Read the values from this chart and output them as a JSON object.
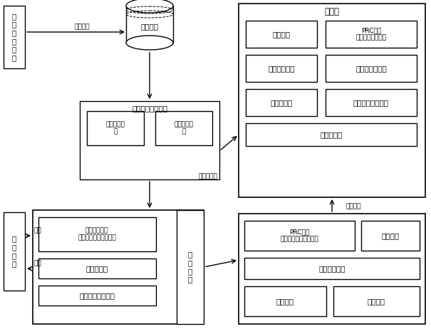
{
  "bg_color": "#ffffff",
  "texts": {
    "create_index": "创\n建\n索\n引\n请\n求",
    "send_vector": "发送向量",
    "msg_queue": "消息队列",
    "index_tool": "索引数据维护工具",
    "realtime_index": "实时索引维\n护",
    "full_index": "全量索引构\n建",
    "master_node": "主节点",
    "elect_module": "选举模块",
    "prc_meta": "PRC接口\n（元数据／心跳）",
    "event_sub": "事件订阅通知",
    "shard_mgmt": "分片分配与管理",
    "meta_mgmt": "元数据管理",
    "vec_cluster": "向量节点集群管理",
    "meta_sync": "元数据同步",
    "get_meta": "获取元数据",
    "heartbeat_report": "心跳汇报",
    "search_req": "检\n索\n请\n求",
    "request": "请求",
    "return_val": "返回",
    "iface_service": "接口服务模块\n（查询／增加／删除）",
    "meta_update": "元数据更新",
    "vec_node_conn": "向量节点连接模块",
    "query_merge": "查\n询\n合\n并",
    "prc_node": "PRC接口\n（查询／增加／删除）",
    "heartbeat_keep": "心跳维护",
    "vec_search": "向量搜索引擎",
    "storage": "存储模块",
    "data_sync": "数据同步"
  }
}
